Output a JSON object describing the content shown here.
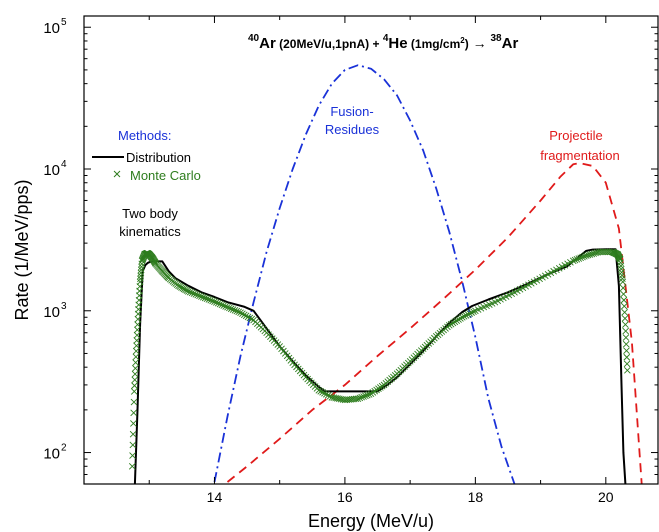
{
  "chart_data": {
    "type": "line",
    "title_parts": {
      "a_mass": "40",
      "a_sym": "Ar",
      "a_cond": " (20MeV/u,1pnA) + ",
      "b_mass": "4",
      "b_sym": "He",
      "b_cond": " (1mg/cm",
      "b_sup": "2",
      "b_close": ")",
      "arrow": " → ",
      "c_mass": "38",
      "c_sym": "Ar"
    },
    "xlabel": "Energy (MeV/u)",
    "ylabel": "Rate (1/MeV/pps)",
    "xlim": [
      12.0,
      20.8
    ],
    "ylim": [
      60,
      120000
    ],
    "yscale": "log",
    "x_ticks": [
      14,
      16,
      18,
      20
    ],
    "x_tick_labels": [
      "14",
      "16",
      "18",
      "20"
    ],
    "y_ticks": [
      100,
      1000,
      10000,
      100000
    ],
    "y_tick_labels": [
      {
        "base": "10",
        "exp": "2"
      },
      {
        "base": "10",
        "exp": "3"
      },
      {
        "base": "10",
        "exp": "4"
      },
      {
        "base": "10",
        "exp": "5"
      }
    ],
    "legend": {
      "title": "Methods:",
      "placement": "left",
      "entries": [
        {
          "label": "Distribution",
          "symbol": "line",
          "color": "#000000"
        },
        {
          "label": "Monte Carlo",
          "symbol": "x",
          "color": "#2e7d1e"
        }
      ]
    },
    "annotations": [
      {
        "id": "two-body",
        "lines": [
          "Two body",
          "kinematics"
        ],
        "color": "#000000"
      },
      {
        "id": "fusion",
        "lines": [
          "Fusion-",
          "Residues"
        ],
        "color": "#1a32d8"
      },
      {
        "id": "projectile",
        "lines": [
          "Projectile",
          "fragmentation"
        ],
        "color": "#e01a1a"
      }
    ],
    "series": [
      {
        "name": "Distribution",
        "color": "#000000",
        "style": "solid",
        "x": [
          12.78,
          12.82,
          12.86,
          12.9,
          12.94,
          12.98,
          13.02,
          13.06,
          13.2,
          13.3,
          13.4,
          13.6,
          13.8,
          14.0,
          14.2,
          14.45,
          14.6,
          14.8,
          15.0,
          15.2,
          15.4,
          15.6,
          15.7,
          16.0,
          16.5,
          16.65,
          16.8,
          17.0,
          17.2,
          17.4,
          17.6,
          17.8,
          17.95,
          18.2,
          18.5,
          18.8,
          19.1,
          19.4,
          19.7,
          19.8,
          20.0,
          20.15,
          20.2,
          20.24,
          20.27,
          20.3
        ],
        "y": [
          60,
          200,
          800,
          1900,
          2100,
          2180,
          2220,
          2230,
          2230,
          1900,
          1700,
          1500,
          1350,
          1250,
          1150,
          1070,
          1000,
          750,
          560,
          440,
          350,
          290,
          270,
          270,
          270,
          300,
          340,
          420,
          520,
          660,
          820,
          980,
          1080,
          1200,
          1350,
          1550,
          1800,
          2050,
          2650,
          2700,
          2720,
          2720,
          1500,
          300,
          100,
          60
        ]
      },
      {
        "name": "Monte Carlo",
        "color": "#2e7d1e",
        "style": "markers",
        "x": [
          12.74,
          12.77,
          12.8,
          12.83,
          12.86,
          12.89,
          12.93,
          12.97,
          13.0,
          13.05,
          13.1,
          13.2,
          13.3,
          13.45,
          13.6,
          13.8,
          14.0,
          14.2,
          14.4,
          14.6,
          14.8,
          15.0,
          15.2,
          15.4,
          15.6,
          15.8,
          16.0,
          16.2,
          16.4,
          16.6,
          16.8,
          17.0,
          17.2,
          17.4,
          17.6,
          17.8,
          18.0,
          18.3,
          18.6,
          18.9,
          19.2,
          19.5,
          19.7,
          19.9,
          20.1,
          20.18,
          20.22,
          20.26,
          20.3,
          20.33
        ],
        "y": [
          80,
          270,
          520,
          950,
          1600,
          2250,
          2500,
          2550,
          2500,
          2350,
          2150,
          1900,
          1700,
          1500,
          1370,
          1260,
          1160,
          1060,
          970,
          860,
          700,
          560,
          430,
          340,
          275,
          245,
          235,
          240,
          260,
          300,
          360,
          440,
          540,
          660,
          790,
          900,
          1000,
          1150,
          1350,
          1600,
          1900,
          2250,
          2450,
          2600,
          2600,
          2500,
          2300,
          1600,
          800,
          380
        ]
      },
      {
        "name": "Fusion-Residues",
        "color": "#1a32d8",
        "style": "dashdot",
        "x": [
          14.0,
          14.2,
          14.4,
          14.6,
          14.8,
          15.0,
          15.2,
          15.4,
          15.6,
          15.8,
          16.0,
          16.2,
          16.4,
          16.6,
          16.8,
          17.0,
          17.2,
          17.4,
          17.6,
          17.8,
          18.0,
          18.2,
          18.4,
          18.6
        ],
        "y": [
          62,
          180,
          480,
          1150,
          2600,
          5300,
          10000,
          17500,
          28000,
          40000,
          50000,
          54000,
          51000,
          43000,
          33000,
          22000,
          13500,
          7300,
          3600,
          1600,
          650,
          240,
          110,
          60
        ]
      },
      {
        "name": "Projectile fragmentation",
        "color": "#e01a1a",
        "style": "dashed",
        "x": [
          14.2,
          14.5,
          15.0,
          15.5,
          16.0,
          16.5,
          17.0,
          17.5,
          18.0,
          18.5,
          19.0,
          19.3,
          19.5,
          19.6,
          19.8,
          20.0,
          20.2,
          20.4,
          20.55
        ],
        "y": [
          62,
          80,
          125,
          200,
          300,
          480,
          750,
          1200,
          1950,
          3300,
          6000,
          8800,
          10800,
          11000,
          10500,
          8000,
          3800,
          600,
          60
        ]
      }
    ]
  }
}
